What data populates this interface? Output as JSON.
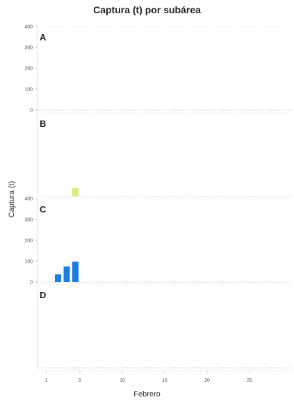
{
  "chart_data": {
    "type": "bar",
    "title": "Captura (t) por subárea",
    "xlabel": "Febrero",
    "ylabel": "Captura (t)",
    "x_ticks": [
      1,
      5,
      10,
      15,
      20,
      25
    ],
    "xlim": [
      0,
      30
    ],
    "ylim": [
      0,
      400
    ],
    "panels": [
      {
        "name": "A",
        "y_ticks": [
          0,
          100,
          200,
          300,
          400
        ],
        "bars": []
      },
      {
        "name": "B",
        "y_ticks": [],
        "bars": [
          {
            "x": 3,
            "y": 40,
            "color": "#d8ec7a"
          }
        ]
      },
      {
        "name": "C",
        "y_ticks": [
          0,
          100,
          200,
          300,
          400
        ],
        "bars": [
          {
            "x": 1,
            "y": 38,
            "color": "#1a7fe0"
          },
          {
            "x": 2,
            "y": 75,
            "color": "#1a7fe0"
          },
          {
            "x": 3,
            "y": 98,
            "color": "#1a7fe0"
          }
        ]
      },
      {
        "name": "D",
        "y_ticks": [],
        "bars": []
      }
    ]
  }
}
